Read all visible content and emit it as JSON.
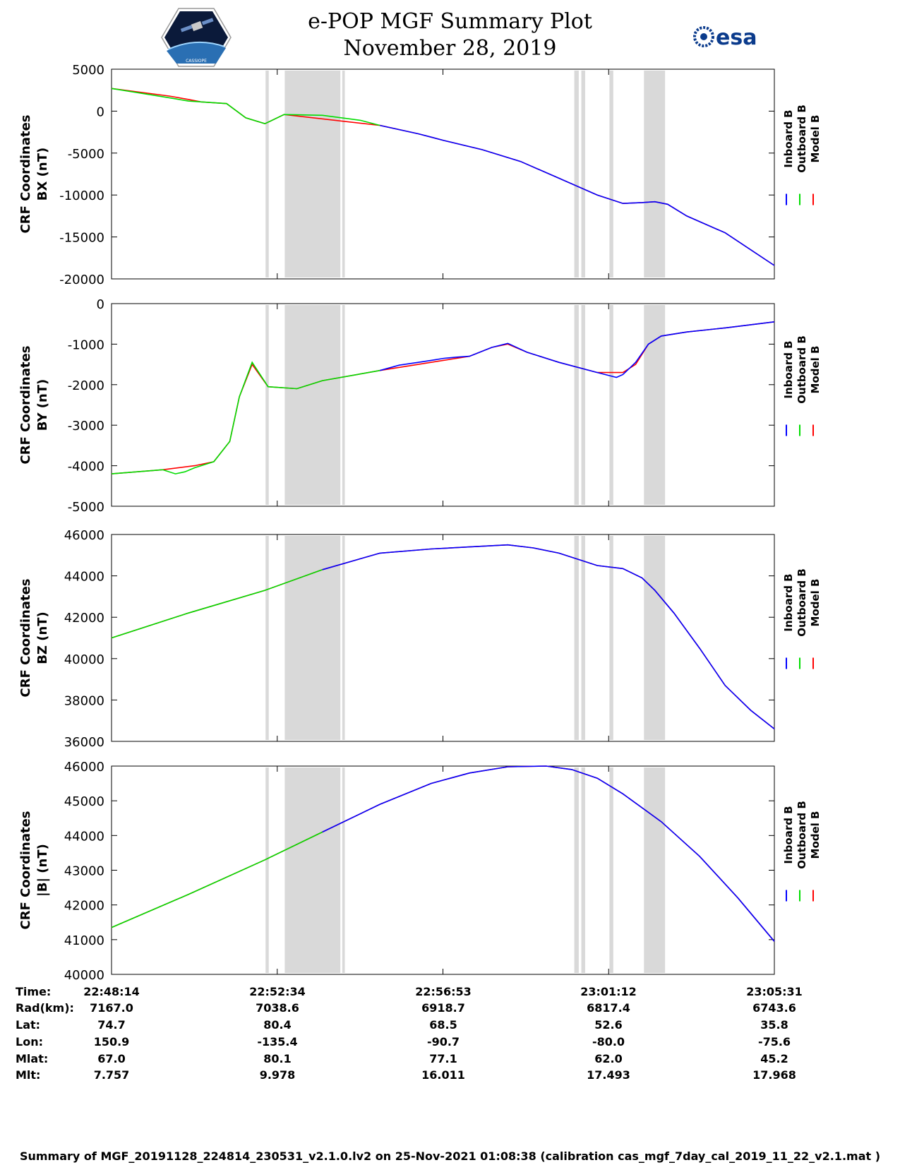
{
  "header": {
    "title": "e-POP MGF Summary Plot",
    "date": "November 28, 2019",
    "logo_left_text": "CASSIOPE",
    "logo_right_text": "esa"
  },
  "colors": {
    "inboard": "#0000ff",
    "outboard": "#00dd00",
    "model": "#ff0000",
    "gap": "#d9d9d9"
  },
  "legend": [
    "Inboard B",
    "Outboard B",
    "Model B"
  ],
  "chart_data": [
    {
      "type": "line",
      "ylabel": "CRF Coordinates",
      "ylabel2": "BX (nT)",
      "ylim": [
        -20000,
        5000
      ],
      "yticks": [
        5000,
        0,
        -5000,
        -10000,
        -15000,
        -20000
      ],
      "xlim": [
        0,
        1037
      ],
      "gaps": [
        [
          241,
          246
        ],
        [
          271,
          358
        ],
        [
          361,
          365
        ],
        [
          724,
          731
        ],
        [
          735,
          741
        ],
        [
          779,
          785
        ],
        [
          833,
          866
        ]
      ],
      "series": [
        {
          "name": "Model B",
          "x": [
            0,
            90,
            120,
            140,
            180,
            210,
            240,
            270,
            420,
            480,
            500,
            520,
            580,
            640,
            700,
            760,
            800,
            830,
            850,
            870,
            900,
            960,
            1037
          ],
          "y": [
            2700,
            1800,
            1400,
            1100,
            900,
            -800,
            -1500,
            -400,
            -1700,
            -2700,
            -3100,
            -3500,
            -4600,
            -6000,
            -8000,
            -10000,
            -11000,
            -10900,
            -10800,
            -11100,
            -12500,
            -14500,
            -18400
          ]
        },
        {
          "name": "Outboard B",
          "x": [
            0,
            90,
            120,
            140,
            180,
            210,
            240,
            270,
            330,
            390,
            420
          ],
          "y": [
            2700,
            1600,
            1200,
            1100,
            900,
            -800,
            -1500,
            -400,
            -500,
            -1100,
            -1700
          ]
        },
        {
          "name": "Inboard B",
          "x": [
            420,
            480,
            500,
            520,
            580,
            640,
            700,
            760,
            800,
            830,
            850,
            870,
            900,
            960,
            1037
          ],
          "y": [
            -1700,
            -2700,
            -3100,
            -3500,
            -4600,
            -6000,
            -8000,
            -10000,
            -11000,
            -10900,
            -10800,
            -11100,
            -12500,
            -14500,
            -18400
          ]
        }
      ]
    },
    {
      "type": "line",
      "ylabel": "CRF Coordinates",
      "ylabel2": "BY (nT)",
      "ylim": [
        -5000,
        0
      ],
      "yticks": [
        0,
        -1000,
        -2000,
        -3000,
        -4000,
        -5000
      ],
      "xlim": [
        0,
        1037
      ],
      "gaps": [
        [
          241,
          246
        ],
        [
          271,
          358
        ],
        [
          361,
          365
        ],
        [
          724,
          731
        ],
        [
          735,
          741
        ],
        [
          779,
          785
        ],
        [
          833,
          866
        ]
      ],
      "series": [
        {
          "name": "Model B",
          "x": [
            0,
            80,
            130,
            160,
            185,
            200,
            220,
            245,
            290,
            330,
            420,
            500,
            560,
            595,
            620,
            650,
            700,
            760,
            800,
            820,
            840,
            860,
            900,
            960,
            1037
          ],
          "y": [
            -4200,
            -4100,
            -4000,
            -3900,
            -3400,
            -2300,
            -1500,
            -2050,
            -2100,
            -1900,
            -1650,
            -1450,
            -1300,
            -1080,
            -1000,
            -1200,
            -1450,
            -1700,
            -1700,
            -1500,
            -1000,
            -800,
            -700,
            -600,
            -450
          ]
        },
        {
          "name": "Outboard B",
          "x": [
            0,
            80,
            100,
            115,
            130,
            160,
            185,
            200,
            220,
            245,
            290,
            330,
            420
          ],
          "y": [
            -4200,
            -4100,
            -4200,
            -4150,
            -4050,
            -3900,
            -3400,
            -2300,
            -1450,
            -2050,
            -2100,
            -1900,
            -1650
          ]
        },
        {
          "name": "Inboard B",
          "x": [
            420,
            450,
            480,
            500,
            520,
            540,
            560,
            595,
            620,
            650,
            700,
            760,
            790,
            800,
            820,
            840,
            860,
            900,
            960,
            1037
          ],
          "y": [
            -1650,
            -1520,
            -1450,
            -1400,
            -1350,
            -1320,
            -1300,
            -1080,
            -980,
            -1200,
            -1450,
            -1700,
            -1820,
            -1750,
            -1450,
            -1000,
            -800,
            -700,
            -600,
            -450
          ]
        }
      ]
    },
    {
      "type": "line",
      "ylabel": "CRF Coordinates",
      "ylabel2": "BZ (nT)",
      "ylim": [
        36000,
        46000
      ],
      "yticks": [
        46000,
        44000,
        42000,
        40000,
        38000,
        36000
      ],
      "xlim": [
        0,
        1037
      ],
      "gaps": [
        [
          241,
          246
        ],
        [
          271,
          358
        ],
        [
          361,
          365
        ],
        [
          724,
          731
        ],
        [
          735,
          741
        ],
        [
          779,
          785
        ],
        [
          833,
          866
        ]
      ],
      "series": [
        {
          "name": "Model B",
          "x": [
            0,
            120,
            240,
            330,
            420,
            500,
            560,
            620,
            660,
            700,
            760,
            800,
            830,
            850,
            880,
            920,
            960,
            1000,
            1037
          ],
          "y": [
            41000,
            42200,
            43300,
            44300,
            45100,
            45300,
            45400,
            45500,
            45350,
            45100,
            44500,
            44350,
            43900,
            43300,
            42200,
            40500,
            38700,
            37500,
            36600
          ]
        },
        {
          "name": "Outboard B",
          "x": [
            0,
            120,
            240,
            330
          ],
          "y": [
            41000,
            42200,
            43300,
            44300
          ]
        },
        {
          "name": "Inboard B",
          "x": [
            330,
            420,
            500,
            560,
            620,
            660,
            700,
            760,
            800,
            830,
            850,
            880,
            920,
            960,
            1000,
            1037
          ],
          "y": [
            44300,
            45100,
            45300,
            45400,
            45500,
            45350,
            45100,
            44500,
            44350,
            43900,
            43300,
            42200,
            40500,
            38700,
            37500,
            36600
          ]
        }
      ]
    },
    {
      "type": "line",
      "ylabel": "CRF Coordinates",
      "ylabel2": "|B| (nT)",
      "ylim": [
        40000,
        46000
      ],
      "yticks": [
        46000,
        45000,
        44000,
        43000,
        42000,
        41000,
        40000
      ],
      "xlim": [
        0,
        1037
      ],
      "gaps": [
        [
          241,
          246
        ],
        [
          271,
          358
        ],
        [
          361,
          365
        ],
        [
          724,
          731
        ],
        [
          735,
          741
        ],
        [
          779,
          785
        ],
        [
          833,
          866
        ]
      ],
      "series": [
        {
          "name": "Model B",
          "x": [
            0,
            120,
            240,
            330,
            420,
            500,
            560,
            620,
            680,
            720,
            760,
            800,
            860,
            920,
            980,
            1037
          ],
          "y": [
            41350,
            42300,
            43300,
            44100,
            44900,
            45500,
            45800,
            45980,
            46000,
            45900,
            45650,
            45200,
            44400,
            43400,
            42200,
            40950
          ]
        },
        {
          "name": "Outboard B",
          "x": [
            0,
            120,
            240,
            330
          ],
          "y": [
            41350,
            42300,
            43300,
            44100
          ]
        },
        {
          "name": "Inboard B",
          "x": [
            330,
            420,
            500,
            560,
            620,
            680,
            720,
            760,
            800,
            860,
            920,
            980,
            1037
          ],
          "y": [
            44100,
            44900,
            45500,
            45800,
            45980,
            46000,
            45900,
            45650,
            45200,
            44400,
            43400,
            42200,
            40950
          ]
        }
      ]
    }
  ],
  "table": {
    "labels": [
      "Time:",
      "Rad(km):",
      "Lat:",
      "Lon:",
      "Mlat:",
      "Mlt:"
    ],
    "columns": [
      [
        "22:48:14",
        "7167.0",
        "74.7",
        "150.9",
        "67.0",
        "7.757"
      ],
      [
        "22:52:34",
        "7038.6",
        "80.4",
        "-135.4",
        "80.1",
        "9.978"
      ],
      [
        "22:56:53",
        "6918.7",
        "68.5",
        "-90.7",
        "77.1",
        "16.011"
      ],
      [
        "23:01:12",
        "6817.4",
        "52.6",
        "-80.0",
        "62.0",
        "17.493"
      ],
      [
        "23:05:31",
        "6743.6",
        "35.8",
        "-75.6",
        "45.2",
        "17.968"
      ]
    ]
  },
  "footer": "Summary of MGF_20191128_224814_230531_v2.1.0.lv2 on 25-Nov-2021 01:08:38 (calibration cas_mgf_7day_cal_2019_11_22_v2.1.mat )"
}
